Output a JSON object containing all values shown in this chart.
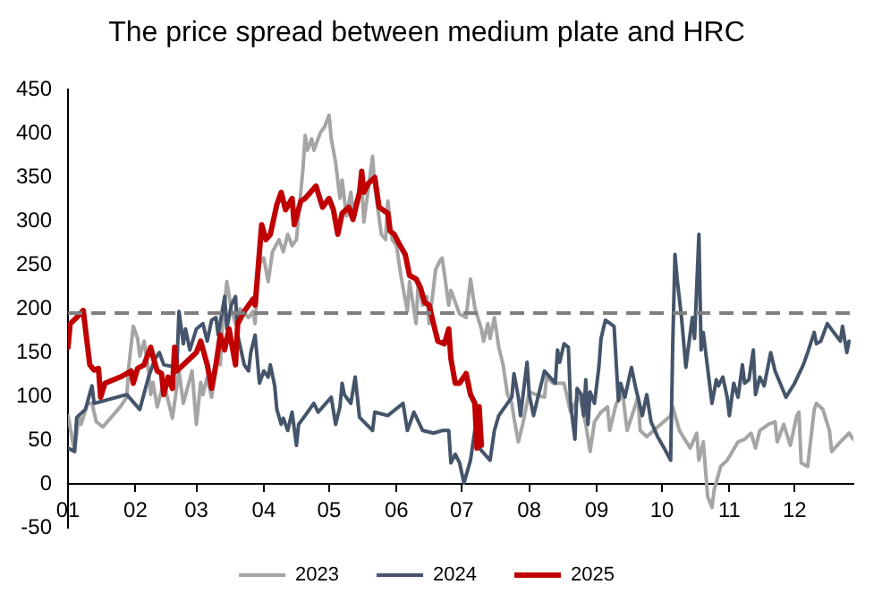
{
  "chart_data": {
    "type": "line",
    "title": "The price spread between medium plate and HRC",
    "xlim": [
      "--01-01",
      "--12-28"
    ],
    "xticks": [
      {
        "value": "--01-01",
        "label": "01"
      },
      {
        "value": "--02-01",
        "label": "02"
      },
      {
        "value": "--03-01",
        "label": "03"
      },
      {
        "value": "--04-01",
        "label": "04"
      },
      {
        "value": "--05-01",
        "label": "05"
      },
      {
        "value": "--06-01",
        "label": "06"
      },
      {
        "value": "--07-01",
        "label": "07"
      },
      {
        "value": "--08-01",
        "label": "08"
      },
      {
        "value": "--09-01",
        "label": "09"
      },
      {
        "value": "--10-01",
        "label": "10"
      },
      {
        "value": "--11-01",
        "label": "11"
      },
      {
        "value": "--12-01",
        "label": "12"
      }
    ],
    "ylim": [
      -50,
      450
    ],
    "yticks": [
      -50,
      0,
      50,
      100,
      150,
      200,
      250,
      300,
      350,
      400,
      450
    ],
    "legend": "bottom",
    "marker": "none",
    "ref_lines": [
      {
        "axis": "y",
        "value": 195,
        "color": "#7f7f7f",
        "line_style": "dashed"
      }
    ],
    "series": [
      {
        "name": "2023",
        "color": "#a5a5a5",
        "x": [
          "--01-01",
          "--01-04",
          "--01-06",
          "--01-07",
          "--01-10",
          "--01-12",
          "--01-14",
          "--01-17",
          "--01-25",
          "--01-28",
          "--01-29",
          "--01-31",
          "--02-02",
          "--02-03",
          "--02-05",
          "--02-07",
          "--02-08",
          "--02-09",
          "--02-11",
          "--02-14",
          "--02-17",
          "--02-18",
          "--02-21",
          "--02-23",
          "--02-27",
          "--03-01",
          "--03-03",
          "--03-04",
          "--03-06",
          "--03-08",
          "--03-11",
          "--03-12",
          "--03-13",
          "--03-15",
          "--03-17",
          "--03-19",
          "--03-21",
          "--03-25",
          "--03-27",
          "--03-28",
          "--03-29",
          "--03-30",
          "--04-01",
          "--04-03",
          "--04-05",
          "--04-08",
          "--04-10",
          "--04-12",
          "--04-14",
          "--04-16",
          "--04-17",
          "--04-19",
          "--04-20",
          "--04-21",
          "--04-23",
          "--04-24",
          "--04-27",
          "--04-29",
          "--05-01",
          "--05-02",
          "--05-04",
          "--05-06",
          "--05-07",
          "--05-09",
          "--05-11",
          "--05-12",
          "--05-16",
          "--05-17",
          "--05-21",
          "--05-22",
          "--05-25",
          "--05-27",
          "--05-28",
          "--05-30",
          "--06-01",
          "--06-03",
          "--06-04",
          "--06-06",
          "--06-07",
          "--06-10",
          "--06-11",
          "--06-13",
          "--06-15",
          "--06-16",
          "--06-19",
          "--06-21",
          "--06-22",
          "--06-25",
          "--06-26",
          "--06-30",
          "--07-03",
          "--07-05",
          "--07-07",
          "--07-10",
          "--07-11",
          "--07-13",
          "--07-14",
          "--07-16",
          "--07-18",
          "--07-20",
          "--07-22",
          "--07-24",
          "--07-25",
          "--07-27",
          "--07-29",
          "--08-01",
          "--08-04",
          "--08-08",
          "--08-09",
          "--08-12",
          "--08-17",
          "--08-20",
          "--08-24",
          "--08-27",
          "--08-29",
          "--08-31",
          "--09-03",
          "--09-06",
          "--09-07",
          "--09-10",
          "--09-13",
          "--09-15",
          "--09-20",
          "--09-21",
          "--09-24",
          "--09-29",
          "--10-05",
          "--10-06",
          "--10-09",
          "--10-14",
          "--10-17",
          "--10-18",
          "--10-20",
          "--10-22",
          "--10-24",
          "--10-25",
          "--10-28",
          "--10-31",
          "--11-05",
          "--11-08",
          "--11-11",
          "--11-13",
          "--11-15",
          "--11-19",
          "--11-22",
          "--11-23",
          "--11-26",
          "--11-29",
          "--12-02",
          "--12-03",
          "--12-04",
          "--12-07",
          "--12-10",
          "--12-11",
          "--12-14",
          "--12-17",
          "--12-18",
          "--12-22",
          "--12-26",
          "--12-28"
        ],
        "values": [
          78,
          37,
          78,
          68,
          92,
          92,
          71,
          65,
          88,
          99,
          136,
          180,
          166,
          146,
          163,
          129,
          102,
          116,
          88,
          116,
          85,
          75,
          129,
          92,
          129,
          68,
          116,
          102,
          122,
          99,
          150,
          136,
          183,
          231,
          200,
          183,
          200,
          190,
          197,
          183,
          224,
          251,
          258,
          231,
          265,
          279,
          265,
          285,
          272,
          279,
          306,
          360,
          398,
          381,
          394,
          381,
          401,
          408,
          421,
          394,
          367,
          326,
          347,
          306,
          333,
          313,
          340,
          299,
          374,
          340,
          285,
          279,
          323,
          279,
          272,
          238,
          224,
          197,
          231,
          183,
          231,
          204,
          214,
          183,
          245,
          255,
          258,
          204,
          221,
          194,
          190,
          234,
          201,
          177,
          163,
          183,
          166,
          190,
          156,
          136,
          102,
          92,
          75,
          48,
          68,
          105,
          102,
          99,
          122,
          115,
          115,
          82,
          102,
          68,
          37,
          71,
          82,
          88,
          61,
          92,
          102,
          61,
          99,
          61,
          54,
          65,
          78,
          88,
          61,
          41,
          58,
          27,
          48,
          -14,
          -27,
          -7,
          20,
          27,
          48,
          51,
          58,
          41,
          61,
          68,
          71,
          48,
          68,
          44,
          78,
          82,
          24,
          20,
          85,
          92,
          85,
          61,
          37,
          48,
          58,
          51
        ]
      },
      {
        "name": "2024",
        "color": "#44546a",
        "x": [
          "--01-01",
          "--01-04",
          "--01-05",
          "--01-09",
          "--01-12",
          "--01-13",
          "--01-28",
          "--02-03",
          "--02-07",
          "--02-10",
          "--02-12",
          "--02-14",
          "--02-20",
          "--02-21",
          "--02-23",
          "--02-24",
          "--02-26",
          "--03-01",
          "--03-04",
          "--03-06",
          "--03-08",
          "--03-10",
          "--03-11",
          "--03-14",
          "--03-15",
          "--03-17",
          "--03-19",
          "--03-20",
          "--03-23",
          "--03-25",
          "--03-26",
          "--03-28",
          "--03-30",
          "--04-01",
          "--04-03",
          "--04-04",
          "--04-06",
          "--04-07",
          "--04-09",
          "--04-10",
          "--04-12",
          "--04-14",
          "--04-16",
          "--04-17",
          "--04-20",
          "--04-24",
          "--04-26",
          "--05-02",
          "--05-04",
          "--05-06",
          "--05-07",
          "--05-08",
          "--05-11",
          "--05-13",
          "--05-15",
          "--05-21",
          "--05-22",
          "--05-28",
          "--06-04",
          "--06-06",
          "--06-09",
          "--06-13",
          "--06-18",
          "--06-22",
          "--06-25",
          "--06-26",
          "--06-28",
          "--06-30",
          "--07-02",
          "--07-05",
          "--07-07",
          "--07-09",
          "--07-14",
          "--07-16",
          "--07-18",
          "--07-24",
          "--07-25",
          "--07-27",
          "--07-28",
          "--07-31",
          "--08-01",
          "--08-03",
          "--08-05",
          "--08-08",
          "--08-13",
          "--08-14",
          "--08-15",
          "--08-17",
          "--08-19",
          "--08-20",
          "--08-22",
          "--08-23",
          "--08-25",
          "--08-26",
          "--08-27",
          "--08-28",
          "--08-29",
          "--08-31",
          "--09-02",
          "--09-03",
          "--09-05",
          "--09-09",
          "--09-11",
          "--09-12",
          "--09-14",
          "--09-16",
          "--09-17",
          "--09-19",
          "--09-22",
          "--09-24",
          "--09-26",
          "--09-29",
          "--10-02",
          "--10-05",
          "--10-06",
          "--10-07",
          "--10-08",
          "--10-10",
          "--10-12",
          "--10-13",
          "--10-15",
          "--10-16",
          "--10-18",
          "--10-19",
          "--10-20",
          "--10-24",
          "--10-26",
          "--10-27",
          "--10-29",
          "--10-31",
          "--11-01",
          "--11-03",
          "--11-05",
          "--11-07",
          "--11-08",
          "--11-10",
          "--11-12",
          "--11-13",
          "--11-15",
          "--11-17",
          "--11-20",
          "--11-22",
          "--11-27",
          "--12-01",
          "--12-05",
          "--12-07",
          "--12-10",
          "--12-11",
          "--12-13",
          "--12-16",
          "--12-22",
          "--12-23",
          "--12-25",
          "--12-26"
        ],
        "values": [
          41,
          37,
          76,
          85,
          112,
          92,
          102,
          85,
          122,
          143,
          150,
          136,
          133,
          197,
          160,
          177,
          153,
          177,
          183,
          163,
          187,
          190,
          170,
          214,
          177,
          204,
          214,
          170,
          136,
          129,
          150,
          170,
          115,
          129,
          122,
          136,
          112,
          85,
          68,
          75,
          61,
          82,
          44,
          68,
          78,
          92,
          82,
          99,
          68,
          88,
          115,
          102,
          92,
          122,
          76,
          61,
          82,
          78,
          92,
          61,
          82,
          61,
          58,
          61,
          61,
          24,
          34,
          24,
          1,
          27,
          61,
          41,
          27,
          61,
          78,
          99,
          126,
          99,
          78,
          139,
          102,
          78,
          99,
          129,
          115,
          153,
          139,
          160,
          156,
          92,
          51,
          109,
          102,
          78,
          119,
          68,
          105,
          92,
          133,
          166,
          187,
          180,
          95,
          115,
          99,
          122,
          133,
          109,
          78,
          102,
          71,
          54,
          41,
          27,
          163,
          262,
          234,
          190,
          133,
          153,
          190,
          166,
          285,
          153,
          173,
          92,
          119,
          112,
          122,
          99,
          78,
          115,
          99,
          136,
          115,
          119,
          153,
          102,
          122,
          112,
          150,
          129,
          99,
          115,
          136,
          150,
          173,
          160,
          163,
          183,
          163,
          180,
          150,
          163
        ]
      },
      {
        "name": "2025",
        "color": "#c00000",
        "x": [
          "--01-01",
          "--01-02",
          "--01-05",
          "--01-08",
          "--01-11",
          "--01-13",
          "--01-15",
          "--01-16",
          "--01-18",
          "--01-22",
          "--01-25",
          "--01-28",
          "--01-30",
          "--01-31",
          "--02-02",
          "--02-05",
          "--02-07",
          "--02-08",
          "--02-09",
          "--02-11",
          "--02-13",
          "--02-14",
          "--02-16",
          "--02-18",
          "--02-19",
          "--02-20",
          "--02-23",
          "--02-26",
          "--03-01",
          "--03-03",
          "--03-06",
          "--03-08",
          "--03-10",
          "--03-12",
          "--03-14",
          "--03-16",
          "--03-19",
          "--03-20",
          "--03-23",
          "--03-27",
          "--03-28",
          "--03-30",
          "--03-31",
          "--04-02",
          "--04-04",
          "--04-07",
          "--04-09",
          "--04-11",
          "--04-14",
          "--04-15",
          "--04-18",
          "--04-20",
          "--04-25",
          "--04-28",
          "--05-01",
          "--05-03",
          "--05-05",
          "--05-07",
          "--05-10",
          "--05-12",
          "--05-15",
          "--05-16",
          "--05-17",
          "--05-19",
          "--05-22",
          "--05-24",
          "--05-28",
          "--05-29",
          "--05-31",
          "--06-02",
          "--06-05",
          "--06-07",
          "--06-10",
          "--06-12",
          "--06-14",
          "--06-16",
          "--06-18",
          "--06-20",
          "--06-23",
          "--06-25",
          "--06-26",
          "--06-28",
          "--06-30",
          "--07-03",
          "--07-05",
          "--07-07",
          "--07-08",
          "--07-09",
          "--07-10"
        ],
        "values": [
          156,
          183,
          190,
          198,
          136,
          130,
          132,
          99,
          115,
          119,
          122,
          126,
          129,
          115,
          132,
          136,
          150,
          156,
          146,
          129,
          126,
          102,
          122,
          109,
          156,
          129,
          136,
          143,
          150,
          163,
          136,
          109,
          136,
          170,
          153,
          177,
          136,
          183,
          197,
          211,
          204,
          265,
          296,
          279,
          285,
          319,
          333,
          313,
          326,
          296,
          323,
          326,
          340,
          316,
          326,
          313,
          285,
          309,
          316,
          302,
          333,
          357,
          333,
          343,
          350,
          316,
          309,
          289,
          285,
          275,
          262,
          238,
          234,
          224,
          207,
          204,
          183,
          163,
          160,
          177,
          143,
          115,
          115,
          126,
          102,
          92,
          41,
          88,
          44
        ]
      }
    ]
  }
}
